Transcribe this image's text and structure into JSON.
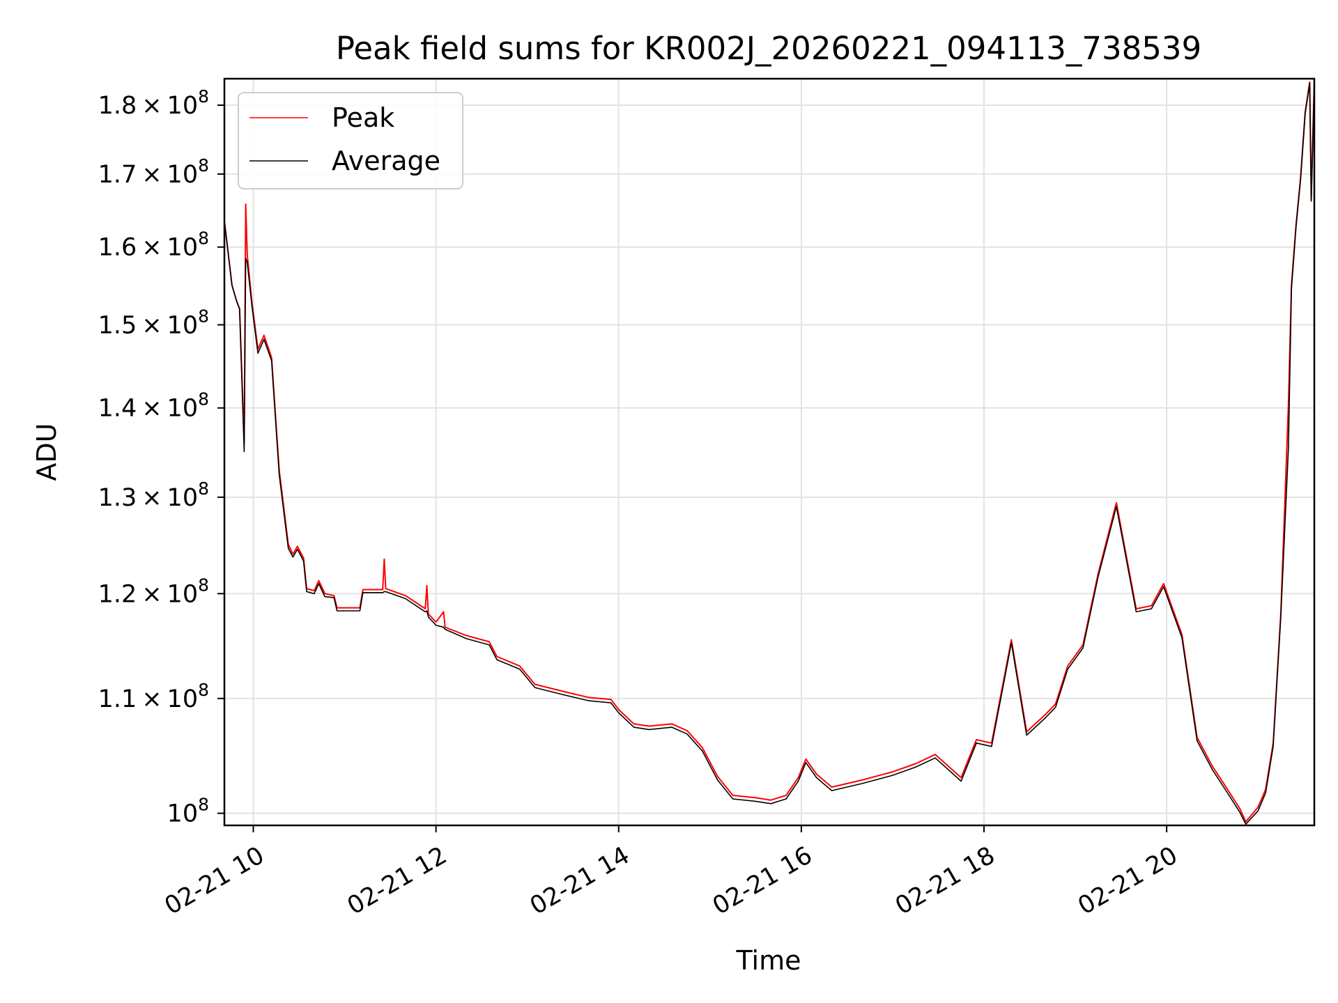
{
  "chart_data": {
    "type": "line",
    "title": "Peak field sums for KR002J_20260221_094113_738539",
    "xlabel": "Time",
    "ylabel": "ADU",
    "x_axis": {
      "kind": "time",
      "range": [
        "2026-02-21 09:41",
        "2026-02-21 21:37"
      ],
      "ticks": [
        {
          "value": "2026-02-21 10:00",
          "label": "02-21 10"
        },
        {
          "value": "2026-02-21 12:00",
          "label": "02-21 12"
        },
        {
          "value": "2026-02-21 14:00",
          "label": "02-21 14"
        },
        {
          "value": "2026-02-21 16:00",
          "label": "02-21 16"
        },
        {
          "value": "2026-02-21 18:00",
          "label": "02-21 18"
        },
        {
          "value": "2026-02-21 20:00",
          "label": "02-21 20"
        }
      ]
    },
    "y_axis": {
      "scale": "log",
      "range": [
        99000000,
        184000000
      ],
      "ticks": [
        {
          "value": 100000000,
          "mantissa": "",
          "exponent": "8"
        },
        {
          "value": 110000000,
          "mantissa": "1.1",
          "exponent": "8"
        },
        {
          "value": 120000000,
          "mantissa": "1.2",
          "exponent": "8"
        },
        {
          "value": 130000000,
          "mantissa": "1.3",
          "exponent": "8"
        },
        {
          "value": 140000000,
          "mantissa": "1.4",
          "exponent": "8"
        },
        {
          "value": 150000000,
          "mantissa": "1.5",
          "exponent": "8"
        },
        {
          "value": 160000000,
          "mantissa": "1.6",
          "exponent": "8"
        },
        {
          "value": 170000000,
          "mantissa": "1.7",
          "exponent": "8"
        },
        {
          "value": 180000000,
          "mantissa": "1.8",
          "exponent": "8"
        }
      ]
    },
    "grid": true,
    "legend": {
      "position": "top-left"
    },
    "series": [
      {
        "name": "Peak",
        "color": "#ff0000",
        "points": [
          [
            "2026-02-21 09:41",
            163500000
          ],
          [
            "2026-02-21 09:46",
            155000000
          ],
          [
            "2026-02-21 09:49",
            153000000
          ],
          [
            "2026-02-21 09:51",
            152000000
          ],
          [
            "2026-02-21 09:54",
            136000000
          ],
          [
            "2026-02-21 09:55",
            165800000
          ],
          [
            "2026-02-21 09:56",
            159000000
          ],
          [
            "2026-02-21 09:59",
            153000000
          ],
          [
            "2026-02-21 10:03",
            147000000
          ],
          [
            "2026-02-21 10:07",
            148700000
          ],
          [
            "2026-02-21 10:12",
            146000000
          ],
          [
            "2026-02-21 10:17",
            133000000
          ],
          [
            "2026-02-21 10:23",
            125000000
          ],
          [
            "2026-02-21 10:26",
            124000000
          ],
          [
            "2026-02-21 10:29",
            124800000
          ],
          [
            "2026-02-21 10:33",
            123600000
          ],
          [
            "2026-02-21 10:35",
            120500000
          ],
          [
            "2026-02-21 10:40",
            120300000
          ],
          [
            "2026-02-21 10:43",
            121300000
          ],
          [
            "2026-02-21 10:47",
            120000000
          ],
          [
            "2026-02-21 10:53",
            119800000
          ],
          [
            "2026-02-21 10:55",
            118600000
          ],
          [
            "2026-02-21 11:10",
            118600000
          ],
          [
            "2026-02-21 11:12",
            120400000
          ],
          [
            "2026-02-21 11:25",
            120400000
          ],
          [
            "2026-02-21 11:26",
            123500000
          ],
          [
            "2026-02-21 11:27",
            120500000
          ],
          [
            "2026-02-21 11:40",
            119800000
          ],
          [
            "2026-02-21 11:53",
            118500000
          ],
          [
            "2026-02-21 11:54",
            120800000
          ],
          [
            "2026-02-21 11:55",
            118000000
          ],
          [
            "2026-02-21 12:00",
            117200000
          ],
          [
            "2026-02-21 12:05",
            118200000
          ],
          [
            "2026-02-21 12:06",
            116700000
          ],
          [
            "2026-02-21 12:20",
            115900000
          ],
          [
            "2026-02-21 12:35",
            115300000
          ],
          [
            "2026-02-21 12:40",
            113900000
          ],
          [
            "2026-02-21 12:55",
            113000000
          ],
          [
            "2026-02-21 13:05",
            111300000
          ],
          [
            "2026-02-21 13:25",
            110600000
          ],
          [
            "2026-02-21 13:40",
            110100000
          ],
          [
            "2026-02-21 13:55",
            109900000
          ],
          [
            "2026-02-21 14:00",
            109000000
          ],
          [
            "2026-02-21 14:10",
            107700000
          ],
          [
            "2026-02-21 14:20",
            107500000
          ],
          [
            "2026-02-21 14:35",
            107700000
          ],
          [
            "2026-02-21 14:45",
            107100000
          ],
          [
            "2026-02-21 14:55",
            105600000
          ],
          [
            "2026-02-21 15:05",
            103100000
          ],
          [
            "2026-02-21 15:15",
            101500000
          ],
          [
            "2026-02-21 15:30",
            101300000
          ],
          [
            "2026-02-21 15:40",
            101100000
          ],
          [
            "2026-02-21 15:50",
            101500000
          ],
          [
            "2026-02-21 15:58",
            103000000
          ],
          [
            "2026-02-21 16:03",
            104600000
          ],
          [
            "2026-02-21 16:10",
            103300000
          ],
          [
            "2026-02-21 16:20",
            102200000
          ],
          [
            "2026-02-21 16:40",
            102800000
          ],
          [
            "2026-02-21 17:00",
            103500000
          ],
          [
            "2026-02-21 17:15",
            104200000
          ],
          [
            "2026-02-21 17:28",
            105000000
          ],
          [
            "2026-02-21 17:45",
            103000000
          ],
          [
            "2026-02-21 17:55",
            106300000
          ],
          [
            "2026-02-21 18:05",
            106000000
          ],
          [
            "2026-02-21 18:12",
            111000000
          ],
          [
            "2026-02-21 18:18",
            115500000
          ],
          [
            "2026-02-21 18:28",
            107000000
          ],
          [
            "2026-02-21 18:40",
            108500000
          ],
          [
            "2026-02-21 18:47",
            109500000
          ],
          [
            "2026-02-21 18:55",
            113000000
          ],
          [
            "2026-02-21 19:05",
            115000000
          ],
          [
            "2026-02-21 19:15",
            122000000
          ],
          [
            "2026-02-21 19:27",
            129400000
          ],
          [
            "2026-02-21 19:40",
            118500000
          ],
          [
            "2026-02-21 19:50",
            118800000
          ],
          [
            "2026-02-21 19:58",
            121000000
          ],
          [
            "2026-02-21 20:10",
            116000000
          ],
          [
            "2026-02-21 20:20",
            106500000
          ],
          [
            "2026-02-21 20:30",
            104000000
          ],
          [
            "2026-02-21 20:40",
            102000000
          ],
          [
            "2026-02-21 20:48",
            100400000
          ],
          [
            "2026-02-21 20:52",
            99300000
          ],
          [
            "2026-02-21 21:00",
            100500000
          ],
          [
            "2026-02-21 21:05",
            102000000
          ],
          [
            "2026-02-21 21:10",
            106000000
          ],
          [
            "2026-02-21 21:15",
            118000000
          ],
          [
            "2026-02-21 21:20",
            140500000
          ],
          [
            "2026-02-21 21:22",
            155000000
          ],
          [
            "2026-02-21 21:25",
            163000000
          ],
          [
            "2026-02-21 21:28",
            169500000
          ],
          [
            "2026-02-21 21:31",
            179000000
          ],
          [
            "2026-02-21 21:34",
            183500000
          ],
          [
            "2026-02-21 21:35",
            166500000
          ],
          [
            "2026-02-21 21:37",
            184000000
          ]
        ]
      },
      {
        "name": "Average",
        "color": "#000000",
        "points": [
          [
            "2026-02-21 09:41",
            163500000
          ],
          [
            "2026-02-21 09:46",
            155000000
          ],
          [
            "2026-02-21 09:49",
            153000000
          ],
          [
            "2026-02-21 09:51",
            152000000
          ],
          [
            "2026-02-21 09:54",
            135000000
          ],
          [
            "2026-02-21 09:55",
            158500000
          ],
          [
            "2026-02-21 09:56",
            158000000
          ],
          [
            "2026-02-21 09:59",
            152500000
          ],
          [
            "2026-02-21 10:03",
            146500000
          ],
          [
            "2026-02-21 10:07",
            148200000
          ],
          [
            "2026-02-21 10:12",
            145600000
          ],
          [
            "2026-02-21 10:17",
            132500000
          ],
          [
            "2026-02-21 10:23",
            124600000
          ],
          [
            "2026-02-21 10:26",
            123700000
          ],
          [
            "2026-02-21 10:29",
            124500000
          ],
          [
            "2026-02-21 10:33",
            123300000
          ],
          [
            "2026-02-21 10:35",
            120200000
          ],
          [
            "2026-02-21 10:40",
            120000000
          ],
          [
            "2026-02-21 10:43",
            121000000
          ],
          [
            "2026-02-21 10:47",
            119700000
          ],
          [
            "2026-02-21 10:53",
            119600000
          ],
          [
            "2026-02-21 10:55",
            118300000
          ],
          [
            "2026-02-21 11:10",
            118300000
          ],
          [
            "2026-02-21 11:12",
            120100000
          ],
          [
            "2026-02-21 11:25",
            120100000
          ],
          [
            "2026-02-21 11:26",
            120200000
          ],
          [
            "2026-02-21 11:27",
            120200000
          ],
          [
            "2026-02-21 11:40",
            119500000
          ],
          [
            "2026-02-21 11:53",
            118200000
          ],
          [
            "2026-02-21 11:54",
            118300000
          ],
          [
            "2026-02-21 11:55",
            117700000
          ],
          [
            "2026-02-21 12:00",
            116900000
          ],
          [
            "2026-02-21 12:05",
            116700000
          ],
          [
            "2026-02-21 12:06",
            116500000
          ],
          [
            "2026-02-21 12:20",
            115600000
          ],
          [
            "2026-02-21 12:35",
            115000000
          ],
          [
            "2026-02-21 12:40",
            113600000
          ],
          [
            "2026-02-21 12:55",
            112700000
          ],
          [
            "2026-02-21 13:05",
            111000000
          ],
          [
            "2026-02-21 13:25",
            110300000
          ],
          [
            "2026-02-21 13:40",
            109800000
          ],
          [
            "2026-02-21 13:55",
            109600000
          ],
          [
            "2026-02-21 14:00",
            108700000
          ],
          [
            "2026-02-21 14:10",
            107400000
          ],
          [
            "2026-02-21 14:20",
            107200000
          ],
          [
            "2026-02-21 14:35",
            107400000
          ],
          [
            "2026-02-21 14:45",
            106800000
          ],
          [
            "2026-02-21 14:55",
            105300000
          ],
          [
            "2026-02-21 15:05",
            102800000
          ],
          [
            "2026-02-21 15:15",
            101200000
          ],
          [
            "2026-02-21 15:30",
            101000000
          ],
          [
            "2026-02-21 15:40",
            100800000
          ],
          [
            "2026-02-21 15:50",
            101200000
          ],
          [
            "2026-02-21 15:58",
            102700000
          ],
          [
            "2026-02-21 16:03",
            104300000
          ],
          [
            "2026-02-21 16:10",
            103000000
          ],
          [
            "2026-02-21 16:20",
            101900000
          ],
          [
            "2026-02-21 16:40",
            102500000
          ],
          [
            "2026-02-21 17:00",
            103200000
          ],
          [
            "2026-02-21 17:15",
            103900000
          ],
          [
            "2026-02-21 17:28",
            104700000
          ],
          [
            "2026-02-21 17:45",
            102700000
          ],
          [
            "2026-02-21 17:55",
            106000000
          ],
          [
            "2026-02-21 18:05",
            105700000
          ],
          [
            "2026-02-21 18:12",
            110700000
          ],
          [
            "2026-02-21 18:18",
            115200000
          ],
          [
            "2026-02-21 18:28",
            106700000
          ],
          [
            "2026-02-21 18:40",
            108200000
          ],
          [
            "2026-02-21 18:47",
            109200000
          ],
          [
            "2026-02-21 18:55",
            112700000
          ],
          [
            "2026-02-21 19:05",
            114700000
          ],
          [
            "2026-02-21 19:15",
            121700000
          ],
          [
            "2026-02-21 19:27",
            129000000
          ],
          [
            "2026-02-21 19:40",
            118200000
          ],
          [
            "2026-02-21 19:50",
            118500000
          ],
          [
            "2026-02-21 19:58",
            120700000
          ],
          [
            "2026-02-21 20:10",
            115700000
          ],
          [
            "2026-02-21 20:20",
            106200000
          ],
          [
            "2026-02-21 20:30",
            103700000
          ],
          [
            "2026-02-21 20:40",
            101700000
          ],
          [
            "2026-02-21 20:48",
            100100000
          ],
          [
            "2026-02-21 20:52",
            99100000
          ],
          [
            "2026-02-21 21:00",
            100200000
          ],
          [
            "2026-02-21 21:05",
            101700000
          ],
          [
            "2026-02-21 21:10",
            105700000
          ],
          [
            "2026-02-21 21:15",
            117700000
          ],
          [
            "2026-02-21 21:20",
            135500000
          ],
          [
            "2026-02-21 21:22",
            154500000
          ],
          [
            "2026-02-21 21:25",
            162700000
          ],
          [
            "2026-02-21 21:28",
            169200000
          ],
          [
            "2026-02-21 21:31",
            178700000
          ],
          [
            "2026-02-21 21:34",
            183300000
          ],
          [
            "2026-02-21 21:35",
            166200000
          ],
          [
            "2026-02-21 21:37",
            183800000
          ]
        ]
      }
    ]
  }
}
